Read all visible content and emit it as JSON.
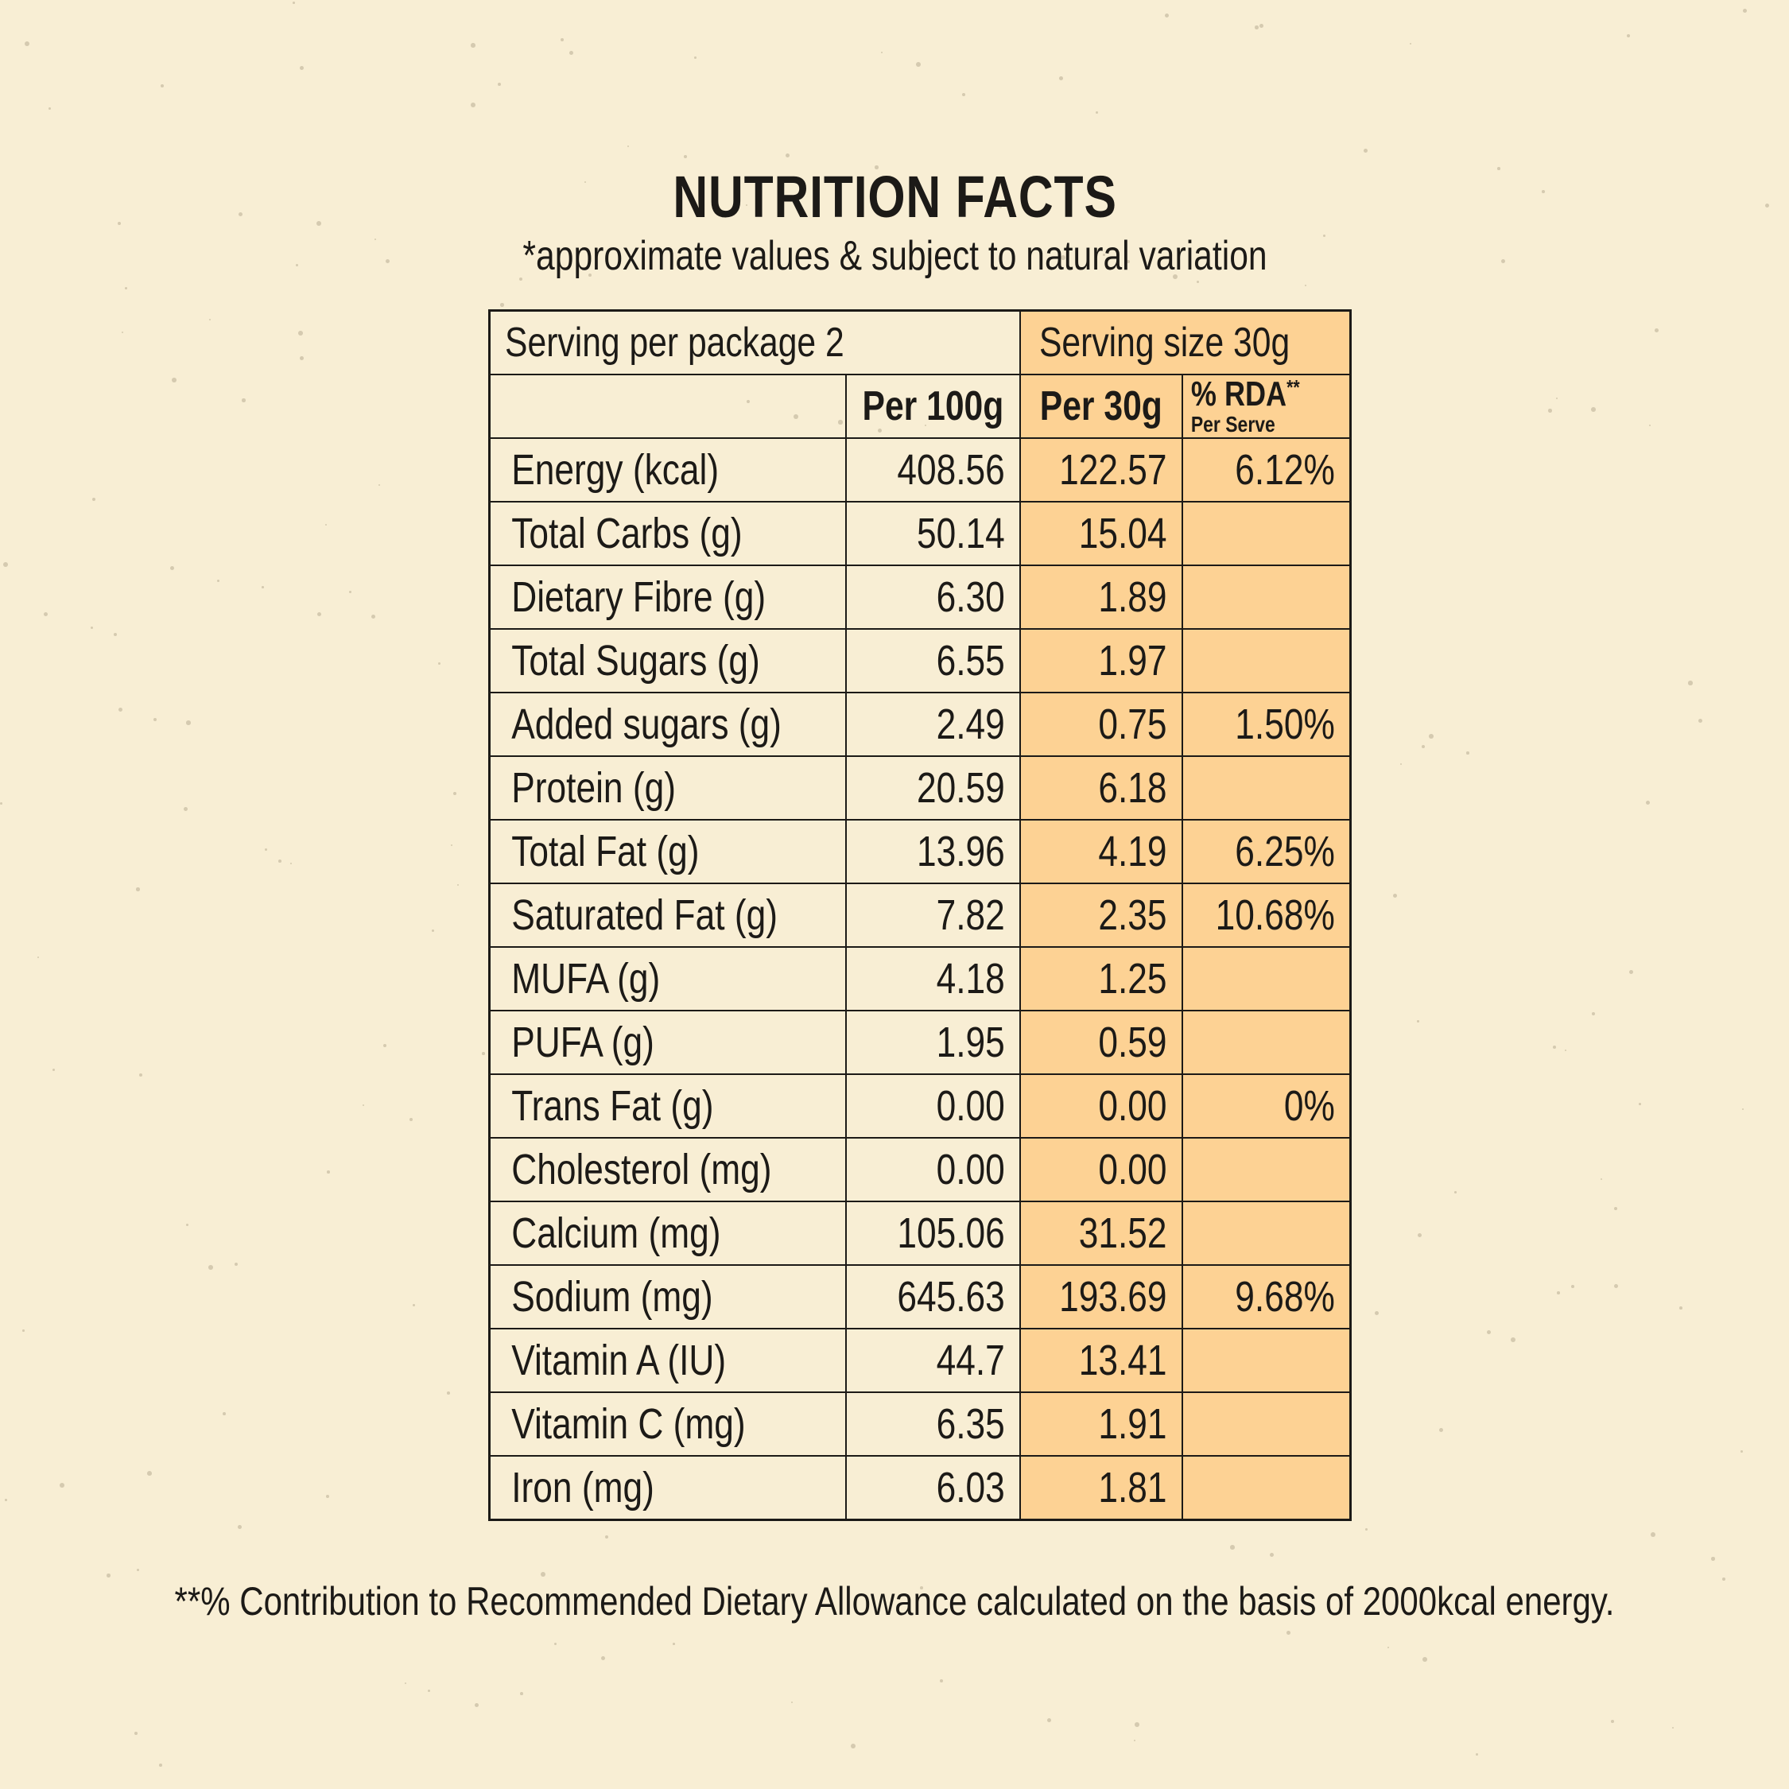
{
  "title": "NUTRITION FACTS",
  "subtitle": "*approximate values & subject to natural variation",
  "serving": {
    "per_package": "Serving per package 2",
    "size": "Serving size 30g"
  },
  "headers": {
    "per100": "Per 100g",
    "per30": "Per 30g",
    "rda_main": "% RDA",
    "rda_sup": "**",
    "rda_sub": "Per Serve"
  },
  "rows": [
    {
      "label": "Energy (kcal)",
      "per100": "408.56",
      "per30": "122.57",
      "rda": "6.12%"
    },
    {
      "label": "Total Carbs (g)",
      "per100": "50.14",
      "per30": "15.04",
      "rda": ""
    },
    {
      "label": "Dietary Fibre (g)",
      "per100": "6.30",
      "per30": "1.89",
      "rda": ""
    },
    {
      "label": "Total Sugars (g)",
      "per100": "6.55",
      "per30": "1.97",
      "rda": ""
    },
    {
      "label": "Added sugars (g)",
      "per100": "2.49",
      "per30": "0.75",
      "rda": "1.50%"
    },
    {
      "label": "Protein (g)",
      "per100": "20.59",
      "per30": "6.18",
      "rda": ""
    },
    {
      "label": "Total Fat (g)",
      "per100": "13.96",
      "per30": "4.19",
      "rda": "6.25%"
    },
    {
      "label": "Saturated Fat (g)",
      "per100": "7.82",
      "per30": "2.35",
      "rda": "10.68%"
    },
    {
      "label": "MUFA (g)",
      "per100": "4.18",
      "per30": "1.25",
      "rda": ""
    },
    {
      "label": "PUFA (g)",
      "per100": "1.95",
      "per30": "0.59",
      "rda": ""
    },
    {
      "label": "Trans Fat (g)",
      "per100": "0.00",
      "per30": "0.00",
      "rda": "0%"
    },
    {
      "label": "Cholesterol (mg)",
      "per100": "0.00",
      "per30": "0.00",
      "rda": ""
    },
    {
      "label": "Calcium (mg)",
      "per100": "105.06",
      "per30": "31.52",
      "rda": ""
    },
    {
      "label": "Sodium (mg)",
      "per100": "645.63",
      "per30": "193.69",
      "rda": "9.68%"
    },
    {
      "label": "Vitamin A (IU)",
      "per100": "44.7",
      "per30": "13.41",
      "rda": ""
    },
    {
      "label": "Vitamin C (mg)",
      "per100": "6.35",
      "per30": "1.91",
      "rda": ""
    },
    {
      "label": "Iron (mg)",
      "per100": "6.03",
      "per30": "1.81",
      "rda": ""
    }
  ],
  "footnote": "**% Contribution to Recommended Dietary Allowance calculated on the basis of 2000kcal energy.",
  "colors": {
    "background": "#f8eed4",
    "highlight": "#fdd294",
    "ink": "#1c1a17"
  }
}
